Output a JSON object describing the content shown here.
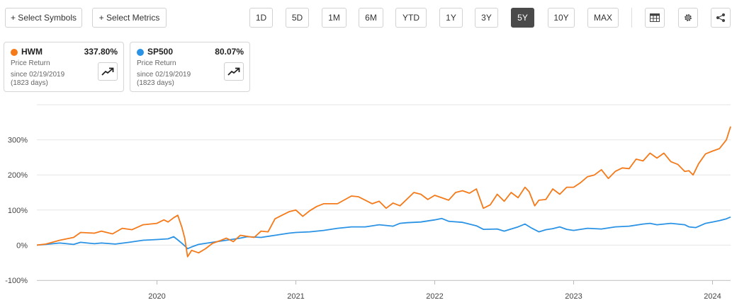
{
  "toolbar": {
    "select_symbols": "+ Select Symbols",
    "select_metrics": "+ Select Metrics",
    "ranges": [
      "1D",
      "5D",
      "1M",
      "6M",
      "YTD",
      "1Y",
      "3Y",
      "5Y",
      "10Y",
      "MAX"
    ],
    "active_range": "5Y",
    "icons": [
      "table-icon",
      "gear-icon",
      "share-icon"
    ]
  },
  "cards": [
    {
      "symbol": "HWM",
      "value": "337.80%",
      "metric": "Price Return",
      "since": "since 02/19/2019",
      "days": "(1823 days)",
      "color": "#f47a1a"
    },
    {
      "symbol": "SP500",
      "value": "80.07%",
      "metric": "Price Return",
      "since": "since 02/19/2019",
      "days": "(1823 days)",
      "color": "#2b93e5"
    }
  ],
  "chart_data": {
    "type": "line",
    "ylim": [
      -100,
      400
    ],
    "xlim": [
      2019.135,
      2024.13
    ],
    "yticks": [
      -100,
      0,
      100,
      200,
      300
    ],
    "ytick_labels": [
      "-100%",
      "0%",
      "100%",
      "200%",
      "300%"
    ],
    "xticks": [
      2020,
      2021,
      2022,
      2023,
      2024
    ],
    "xtick_labels": [
      "2020",
      "2021",
      "2022",
      "2023",
      "2024"
    ],
    "grid": true,
    "series": [
      {
        "name": "HWM",
        "color": "#f47a1a",
        "x": [
          2019.135,
          2019.2,
          2019.3,
          2019.4,
          2019.45,
          2019.55,
          2019.6,
          2019.68,
          2019.75,
          2019.82,
          2019.9,
          2019.95,
          2020.0,
          2020.05,
          2020.08,
          2020.12,
          2020.15,
          2020.18,
          2020.2,
          2020.22,
          2020.25,
          2020.3,
          2020.35,
          2020.4,
          2020.45,
          2020.5,
          2020.55,
          2020.6,
          2020.65,
          2020.7,
          2020.75,
          2020.8,
          2020.85,
          2020.9,
          2020.95,
          2021.0,
          2021.05,
          2021.1,
          2021.15,
          2021.2,
          2021.3,
          2021.4,
          2021.45,
          2021.5,
          2021.55,
          2021.6,
          2021.65,
          2021.7,
          2021.75,
          2021.85,
          2021.9,
          2021.95,
          2022.0,
          2022.05,
          2022.1,
          2022.15,
          2022.2,
          2022.25,
          2022.3,
          2022.35,
          2022.4,
          2022.45,
          2022.5,
          2022.55,
          2022.6,
          2022.65,
          2022.68,
          2022.72,
          2022.75,
          2022.8,
          2022.85,
          2022.9,
          2022.95,
          2023.0,
          2023.05,
          2023.1,
          2023.15,
          2023.2,
          2023.25,
          2023.3,
          2023.35,
          2023.4,
          2023.45,
          2023.5,
          2023.55,
          2023.6,
          2023.65,
          2023.7,
          2023.75,
          2023.8,
          2023.83,
          2023.86,
          2023.9,
          2023.95,
          2024.0,
          2024.05,
          2024.08,
          2024.1,
          2024.12,
          2024.13
        ],
        "y": [
          0,
          3,
          14,
          22,
          36,
          34,
          40,
          32,
          48,
          44,
          58,
          60,
          62,
          72,
          66,
          78,
          85,
          50,
          20,
          -33,
          -15,
          -22,
          -10,
          5,
          12,
          20,
          10,
          28,
          25,
          22,
          40,
          38,
          75,
          85,
          95,
          100,
          82,
          98,
          110,
          118,
          118,
          140,
          138,
          128,
          118,
          125,
          105,
          120,
          112,
          150,
          145,
          130,
          142,
          135,
          128,
          150,
          155,
          148,
          160,
          105,
          115,
          145,
          125,
          150,
          135,
          165,
          152,
          112,
          128,
          130,
          160,
          145,
          165,
          165,
          178,
          195,
          200,
          215,
          190,
          210,
          220,
          218,
          245,
          240,
          262,
          248,
          262,
          238,
          230,
          210,
          212,
          200,
          232,
          260,
          268,
          275,
          290,
          300,
          325,
          338
        ]
      },
      {
        "name": "SP500",
        "color": "#2b93e5",
        "x": [
          2019.135,
          2019.2,
          2019.3,
          2019.4,
          2019.45,
          2019.55,
          2019.6,
          2019.7,
          2019.8,
          2019.9,
          2020.0,
          2020.08,
          2020.12,
          2020.15,
          2020.18,
          2020.2,
          2020.22,
          2020.25,
          2020.3,
          2020.4,
          2020.5,
          2020.6,
          2020.65,
          2020.75,
          2020.85,
          2020.95,
          2021.0,
          2021.1,
          2021.2,
          2021.3,
          2021.4,
          2021.5,
          2021.6,
          2021.7,
          2021.75,
          2021.8,
          2021.9,
          2022.0,
          2022.05,
          2022.1,
          2022.2,
          2022.3,
          2022.35,
          2022.45,
          2022.5,
          2022.6,
          2022.65,
          2022.7,
          2022.75,
          2022.8,
          2022.85,
          2022.9,
          2022.95,
          2023.0,
          2023.1,
          2023.2,
          2023.3,
          2023.4,
          2023.5,
          2023.55,
          2023.6,
          2023.7,
          2023.8,
          2023.83,
          2023.88,
          2023.95,
          2024.0,
          2024.05,
          2024.1,
          2024.13
        ],
        "y": [
          0,
          2,
          6,
          2,
          8,
          4,
          6,
          3,
          8,
          14,
          16,
          18,
          24,
          15,
          5,
          -2,
          -10,
          -5,
          2,
          8,
          14,
          20,
          24,
          22,
          28,
          34,
          36,
          38,
          42,
          48,
          52,
          52,
          58,
          54,
          62,
          64,
          66,
          72,
          76,
          68,
          65,
          55,
          45,
          46,
          40,
          52,
          60,
          48,
          38,
          44,
          47,
          52,
          45,
          42,
          48,
          46,
          52,
          54,
          60,
          62,
          58,
          62,
          58,
          52,
          50,
          62,
          66,
          70,
          75,
          80
        ]
      }
    ]
  }
}
